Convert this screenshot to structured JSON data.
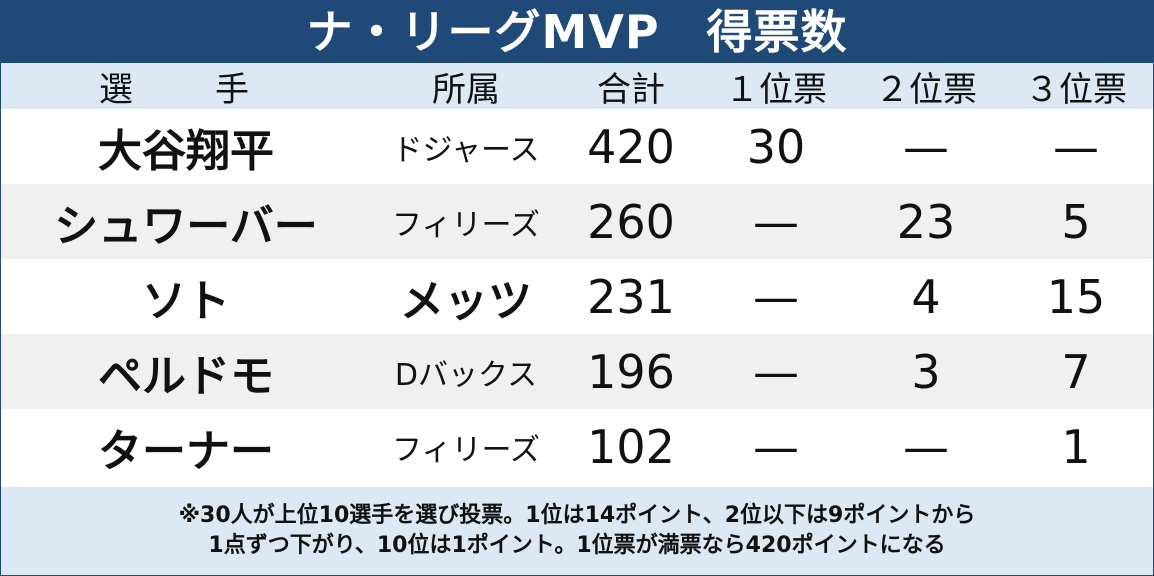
{
  "title": "ナ・リーグMVP　得票数",
  "headers": {
    "player": "選　手",
    "team": "所属",
    "total": "合計",
    "first": "１位票",
    "second": "２位票",
    "third": "３位票"
  },
  "rows": [
    {
      "player": "大谷翔平",
      "team": "ドジャース",
      "total": "420",
      "first": "30",
      "second": "—",
      "third": "—"
    },
    {
      "player": "シュワーバー",
      "team": "フィリーズ",
      "total": "260",
      "first": "—",
      "second": "23",
      "third": "5"
    },
    {
      "player": "ソト",
      "team": "メッツ",
      "total": "231",
      "first": "—",
      "second": "4",
      "third": "15"
    },
    {
      "player": "ペルドモ",
      "team": "Dバックス",
      "total": "196",
      "first": "—",
      "second": "3",
      "third": "7"
    },
    {
      "player": "ターナー",
      "team": "フィリーズ",
      "total": "102",
      "first": "—",
      "second": "—",
      "third": "1"
    }
  ],
  "note": {
    "line1": "※30人が上位10選手を選び投票。1位は14ポイント、2位以下は9ポイントから",
    "line2": "1点ずつ下がり、10位は1ポイント。1位票が満票なら420ポイントになる"
  }
}
